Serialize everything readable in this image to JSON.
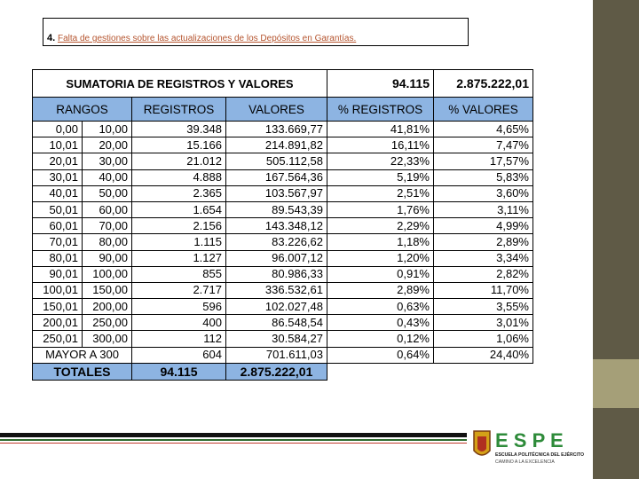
{
  "title": {
    "number": "4.",
    "text": "Falta de gestiones sobre las actualizaciones de los Depósitos en Garantías."
  },
  "table": {
    "summary": {
      "label": "SUMATORIA DE REGISTROS Y VALORES",
      "registros": "94.115",
      "valores": "2.875.222,01"
    },
    "headers": [
      "RANGOS",
      "REGISTROS",
      "VALORES",
      "% REGISTROS",
      "% VALORES"
    ],
    "rows": [
      [
        "0,00",
        "10,00",
        "39.348",
        "133.669,77",
        "41,81%",
        "4,65%"
      ],
      [
        "10,01",
        "20,00",
        "15.166",
        "214.891,82",
        "16,11%",
        "7,47%"
      ],
      [
        "20,01",
        "30,00",
        "21.012",
        "505.112,58",
        "22,33%",
        "17,57%"
      ],
      [
        "30,01",
        "40,00",
        "4.888",
        "167.564,36",
        "5,19%",
        "5,83%"
      ],
      [
        "40,01",
        "50,00",
        "2.365",
        "103.567,97",
        "2,51%",
        "3,60%"
      ],
      [
        "50,01",
        "60,00",
        "1.654",
        "89.543,39",
        "1,76%",
        "3,11%"
      ],
      [
        "60,01",
        "70,00",
        "2.156",
        "143.348,12",
        "2,29%",
        "4,99%"
      ],
      [
        "70,01",
        "80,00",
        "1.115",
        "83.226,62",
        "1,18%",
        "2,89%"
      ],
      [
        "80,01",
        "90,00",
        "1.127",
        "96.007,12",
        "1,20%",
        "3,34%"
      ],
      [
        "90,01",
        "100,00",
        "855",
        "80.986,33",
        "0,91%",
        "2,82%"
      ],
      [
        "100,01",
        "150,00",
        "2.717",
        "336.532,61",
        "2,89%",
        "11,70%"
      ],
      [
        "150,01",
        "200,00",
        "596",
        "102.027,48",
        "0,63%",
        "3,55%"
      ],
      [
        "200,01",
        "250,00",
        "400",
        "86.548,54",
        "0,43%",
        "3,01%"
      ],
      [
        "250,01",
        "300,00",
        "112",
        "30.584,27",
        "0,12%",
        "1,06%"
      ],
      [
        "MAYOR A 300",
        "604",
        "701.611,03",
        "0,64%",
        "24,40%"
      ]
    ],
    "totals": {
      "label": "TOTALES",
      "registros": "94.115",
      "valores": "2.875.222,01"
    }
  },
  "logo": {
    "name": "E S P E",
    "institution": "ESCUELA POLITÉCNICA DEL EJÉRCITO",
    "motto": "CAMINO A LA EXCELENCIA"
  }
}
